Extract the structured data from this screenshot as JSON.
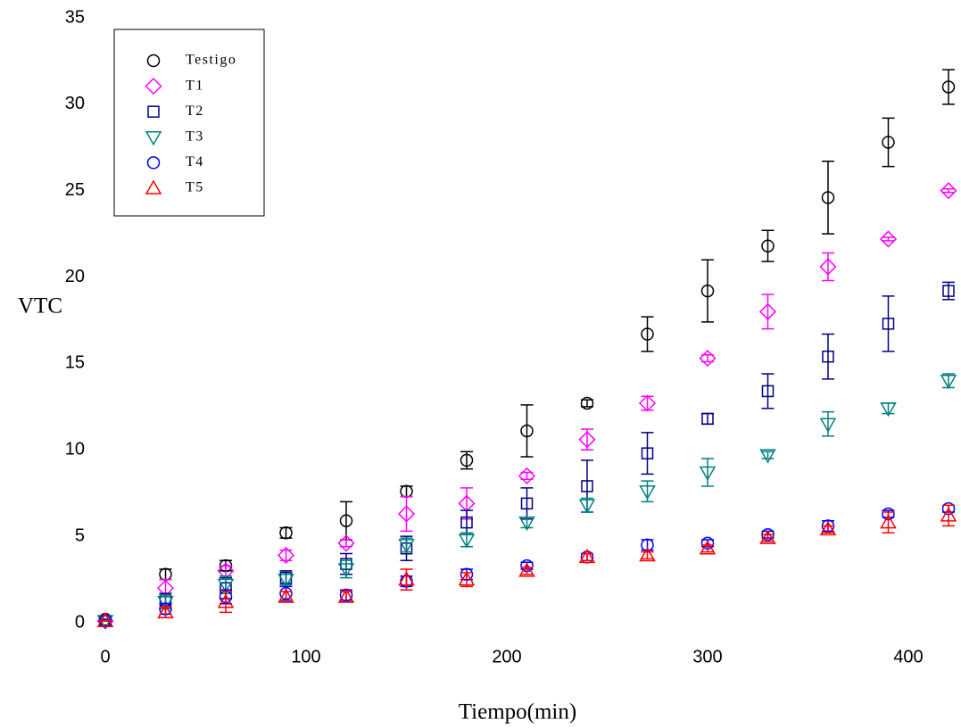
{
  "chart_data": {
    "type": "scatter",
    "x_label": "Tiempo(min)",
    "y_label": "VTC",
    "x": [
      0,
      30,
      60,
      90,
      120,
      150,
      180,
      210,
      240,
      270,
      300,
      330,
      360,
      390,
      420
    ],
    "xlim": [
      0,
      420
    ],
    "xticks": [
      0,
      100,
      200,
      300,
      400
    ],
    "ylim": [
      0,
      35
    ],
    "yticks": [
      0,
      5,
      10,
      15,
      20,
      25,
      30,
      35
    ],
    "legend": "upper-left",
    "series": [
      {
        "name": "Testigo",
        "color": "#000000",
        "marker": "circle",
        "values": [
          0.2,
          2.8,
          3.3,
          5.2,
          5.9,
          7.6,
          9.4,
          11.1,
          12.7,
          16.7,
          19.2,
          21.8,
          24.6,
          27.8,
          31.0
        ],
        "errors": [
          0,
          0.3,
          0.3,
          0.3,
          1.1,
          0.3,
          0.5,
          1.5,
          0.2,
          1.0,
          1.8,
          0.9,
          2.1,
          1.4,
          1.0
        ]
      },
      {
        "name": "T1",
        "color": "#ff00ff",
        "marker": "diamond",
        "values": [
          0.1,
          2.0,
          3.0,
          3.9,
          4.6,
          6.3,
          6.9,
          8.5,
          10.6,
          12.7,
          15.3,
          18.0,
          20.6,
          22.2,
          25.0
        ],
        "errors": [
          0,
          0.5,
          0.3,
          0.3,
          0.2,
          1.0,
          0.9,
          0.2,
          0.6,
          0.4,
          0.2,
          1.0,
          0.8,
          0.1,
          0.1
        ]
      },
      {
        "name": "T2",
        "color": "#000080",
        "marker": "square",
        "values": [
          0.1,
          1.3,
          2.0,
          2.6,
          3.4,
          4.3,
          5.8,
          6.9,
          7.9,
          9.8,
          11.8,
          13.4,
          15.4,
          17.3,
          19.2
        ],
        "errors": [
          0,
          0.4,
          0.6,
          0.4,
          0.6,
          0.7,
          0.7,
          0.9,
          1.5,
          1.2,
          0.3,
          1.0,
          1.3,
          1.6,
          0.5
        ]
      },
      {
        "name": "T3",
        "color": "#008080",
        "marker": "triangle-down",
        "values": [
          0.1,
          1.2,
          2.2,
          2.5,
          3.1,
          4.5,
          4.8,
          5.8,
          6.8,
          7.6,
          8.7,
          9.7,
          11.5,
          12.4,
          14.0
        ],
        "errors": [
          0,
          0.4,
          0.5,
          0.3,
          0.5,
          0.4,
          0.4,
          0.3,
          0.4,
          0.6,
          0.8,
          0.2,
          0.7,
          0.3,
          0.4
        ]
      },
      {
        "name": "T4",
        "color": "#0000ff",
        "marker": "circle",
        "values": [
          0.1,
          0.8,
          1.5,
          1.7,
          1.6,
          2.4,
          2.8,
          3.3,
          3.8,
          4.5,
          4.6,
          5.1,
          5.6,
          6.3,
          6.6
        ],
        "errors": [
          0,
          0.3,
          0.4,
          0.4,
          0.3,
          0.3,
          0.3,
          0.2,
          0.2,
          0.3,
          0.2,
          0.2,
          0.3,
          0.2,
          0.2
        ]
      },
      {
        "name": "T5",
        "color": "#ff0000",
        "marker": "triangle-up",
        "values": [
          0.1,
          0.6,
          1.2,
          1.5,
          1.5,
          2.5,
          2.5,
          3.0,
          3.8,
          3.9,
          4.3,
          4.9,
          5.4,
          5.8,
          6.2
        ],
        "errors": [
          0,
          0.3,
          0.6,
          0.3,
          0.3,
          0.6,
          0.4,
          0.2,
          0.2,
          0.2,
          0.2,
          0.2,
          0.2,
          0.6,
          0.6
        ]
      }
    ]
  }
}
